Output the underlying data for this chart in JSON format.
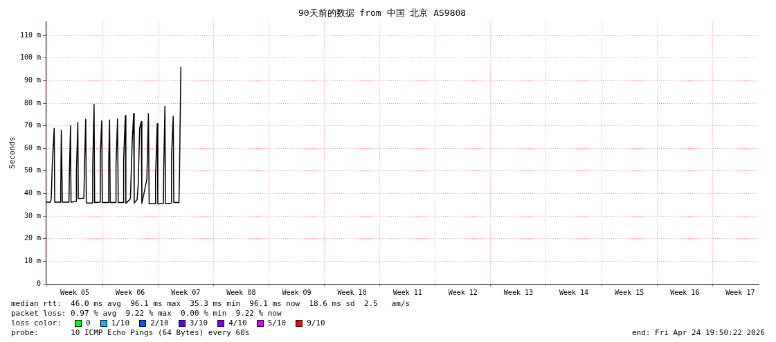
{
  "chart_data": {
    "type": "line",
    "title": "90天前的数据 from 中国 北京 AS9808",
    "ylabel": "Seconds",
    "x": [
      "2026-01-24T21:55",
      "2026-01-25T10:35",
      "2026-01-25T12:40",
      "2026-01-25T16:15",
      "2026-01-25T21:40",
      "2026-01-25T23:10",
      "2026-01-26T16:00",
      "2026-01-26T17:30",
      "2026-01-26T19:10",
      "2026-01-26T22:20",
      "2026-01-27T18:15",
      "2026-01-27T19:20",
      "2026-01-27T22:55",
      "2026-01-28T00:35",
      "2026-01-28T16:25",
      "2026-01-28T17:00",
      "2026-01-28T21:15",
      "2026-01-28T22:40",
      "2026-01-29T15:30",
      "2026-01-29T17:35",
      "2026-01-29T21:10",
      "2026-01-29T22:55",
      "2026-01-30T16:45",
      "2026-01-30T18:15",
      "2026-01-30T22:25",
      "2026-01-31T00:05",
      "2026-01-31T15:55",
      "2026-01-31T17:20",
      "2026-01-31T21:35",
      "2026-01-31T23:15",
      "2026-02-01T17:10",
      "2026-02-01T18:35",
      "2026-02-01T21:20",
      "2026-02-01T23:25",
      "2026-02-02T16:15",
      "2026-02-02T16:55",
      "2026-02-02T21:30",
      "2026-02-02T23:40",
      "2026-02-03T15:25",
      "2026-02-03T16:00",
      "2026-02-03T21:05",
      "2026-02-03T22:45",
      "2026-02-04T12:25",
      "2026-02-04T18:05",
      "2026-02-04T22:20",
      "2026-02-05T00:00",
      "2026-02-05T08:50",
      "2026-02-05T12:10",
      "2026-02-05T16:25",
      "2026-02-05T21:30",
      "2026-02-05T23:10",
      "2026-02-06T14:15",
      "2026-02-06T19:05",
      "2026-02-06T21:15",
      "2026-02-07T16:10",
      "2026-02-07T16:45",
      "2026-02-07T21:50",
      "2026-02-07T23:30",
      "2026-02-08T16:20",
      "2026-02-08T17:25",
      "2026-02-08T21:00",
      "2026-02-08T22:40",
      "2026-02-09T16:30",
      "2026-02-09T17:10",
      "2026-02-09T22:15",
      "2026-02-09T23:55",
      "2026-02-10T15:40",
      "2026-02-10T17:10",
      "2026-02-10T21:20"
    ],
    "series": [
      {
        "color": "#000000",
        "values": [
          36.2,
          36.2,
          37.9,
          54.5,
          68.9,
          36.2,
          36.2,
          42.5,
          67.9,
          36.2,
          36.2,
          46.2,
          70.0,
          36.2,
          36.5,
          50.2,
          71.5,
          37.8,
          37.9,
          53.4,
          72.9,
          35.8,
          35.8,
          52.2,
          79.5,
          36.0,
          36.2,
          57.0,
          72.2,
          36.0,
          36.0,
          53.1,
          72.6,
          36.0,
          36.0,
          52.8,
          73.0,
          36.0,
          36.0,
          55.2,
          74.5,
          35.6,
          37.7,
          63.2,
          75.4,
          35.8,
          37.3,
          43.9,
          68.9,
          71.9,
          35.6,
          46.2,
          75.4,
          35.5,
          35.5,
          48.4,
          70.9,
          35.4,
          35.6,
          50.0,
          78.6,
          35.5,
          35.7,
          57.2,
          74.2,
          36.0,
          36.0,
          48.5,
          96.1
        ]
      }
    ],
    "xlim": [
      "2026-01-24T19:50",
      "2026-04-24T19:50"
    ],
    "xticks": [
      {
        "value": "2026-01-25T00:00",
        "label": null
      },
      {
        "value": "2026-01-28T12:00",
        "label": "Week 05"
      },
      {
        "value": "2026-02-01T00:00",
        "label": null
      },
      {
        "value": "2026-02-04T12:00",
        "label": "Week 06"
      },
      {
        "value": "2026-02-08T00:00",
        "label": null
      },
      {
        "value": "2026-02-11T12:00",
        "label": "Week 07"
      },
      {
        "value": "2026-02-15T00:00",
        "label": null
      },
      {
        "value": "2026-02-18T12:00",
        "label": "Week 08"
      },
      {
        "value": "2026-02-22T00:00",
        "label": null
      },
      {
        "value": "2026-02-25T12:00",
        "label": "Week 09"
      },
      {
        "value": "2026-03-01T00:00",
        "label": null
      },
      {
        "value": "2026-03-04T12:00",
        "label": "Week 10"
      },
      {
        "value": "2026-03-08T00:00",
        "label": null
      },
      {
        "value": "2026-03-11T12:00",
        "label": "Week 11"
      },
      {
        "value": "2026-03-15T00:00",
        "label": null
      },
      {
        "value": "2026-03-18T12:00",
        "label": "Week 12"
      },
      {
        "value": "2026-03-22T00:00",
        "label": null
      },
      {
        "value": "2026-03-25T12:00",
        "label": "Week 13"
      },
      {
        "value": "2026-03-29T00:00",
        "label": null
      },
      {
        "value": "2026-04-01T12:00",
        "label": "Week 14"
      },
      {
        "value": "2026-04-05T00:00",
        "label": null
      },
      {
        "value": "2026-04-08T12:00",
        "label": "Week 15"
      },
      {
        "value": "2026-04-12T00:00",
        "label": null
      },
      {
        "value": "2026-04-15T12:00",
        "label": "Week 16"
      },
      {
        "value": "2026-04-19T00:00",
        "label": null
      },
      {
        "value": "2026-04-22T12:00",
        "label": "Week 17"
      }
    ],
    "ylim": [
      0,
      116
    ],
    "yticks": [
      0,
      {
        "value": 10,
        "label": "10 m"
      },
      {
        "value": 20,
        "label": "20 m"
      },
      {
        "value": 30,
        "label": "30 m"
      },
      {
        "value": 40,
        "label": "40 m"
      },
      {
        "value": 50,
        "label": "50 m"
      },
      {
        "value": 60,
        "label": "60 m"
      },
      {
        "value": 70,
        "label": "70 m"
      },
      {
        "value": 80,
        "label": "80 m"
      },
      {
        "value": 90,
        "label": "90 m"
      },
      {
        "value": 100,
        "label": "100 m"
      },
      {
        "value": 110,
        "label": "110 m"
      }
    ],
    "grid": true,
    "marker": "none",
    "line_style": "solid",
    "annotations": [
      "median rtt:  46.0 ms avg  96.1 ms max  35.3 ms min  96.1 ms now  18.6 ms sd  2.5   am/s",
      "packet loss: 0.97 % avg  9.22 % max  0.00 % min  9.22 % now",
      "loss color:",
      "0",
      "1/10",
      "2/10",
      "3/10",
      "4/10",
      "5/10",
      "9/10",
      "probe:       10 ICMP Echo Pings (64 Bytes) every 60s",
      "end: Fri Apr 24 19:50:22 2026"
    ]
  }
}
